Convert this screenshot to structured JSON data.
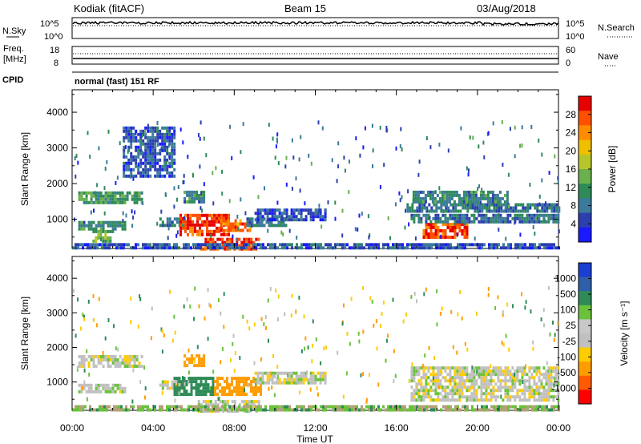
{
  "header": {
    "station": "Kodiak (fitACF)",
    "beam": "Beam 15",
    "date": "03/Aug/2018"
  },
  "top_panels": {
    "nsky_label": "N.Sky",
    "nsky_ticks": [
      "10^5",
      "10^0"
    ],
    "nsearch_label": "N.Search",
    "nsearch_ticks": [
      "10^5",
      "10^0"
    ],
    "freq_label_1": "Freq.",
    "freq_label_2": "[MHz]",
    "freq_ticks": [
      "18",
      "8"
    ],
    "nave_label": "Nave",
    "nave_ticks": [
      "60",
      "0"
    ],
    "cpid_label": "CPID",
    "cpid_value": "normal (fast) 151 RF"
  },
  "colors": {
    "power": [
      "#1a1aff",
      "#2b3fae",
      "#3b7a9a",
      "#2e8b57",
      "#6ab04c",
      "#b6c62a",
      "#f0c000",
      "#ff8c00",
      "#ff5000",
      "#e60000"
    ],
    "velocity": [
      "#ff0000",
      "#ff5a00",
      "#ff9d00",
      "#ffcc00",
      "#c0c0c0",
      "#c8c8c8",
      "#6ac23a",
      "#2e8b57",
      "#2f5fa8",
      "#1a3fd0"
    ],
    "ground_scatter": "#b4a07a"
  },
  "chart_data": [
    {
      "type": "heatmap",
      "name": "power-panel",
      "xlabel": "",
      "ylabel": "Slant Range [km]",
      "x_ticks": [
        "00:00",
        "04:00",
        "08:00",
        "12:00",
        "16:00",
        "20:00",
        "00:00"
      ],
      "x_range_hours": [
        0,
        24
      ],
      "y_ticks": [
        1000,
        2000,
        3000,
        4000
      ],
      "ylim": [
        180,
        4630
      ],
      "colorbar_label": "Power [dB]",
      "colorbar_ticks": [
        "4",
        "8",
        "12",
        "16",
        "20",
        "24",
        "28"
      ],
      "colorbar_range": [
        0,
        32
      ],
      "regions": [
        {
          "t0": 0.3,
          "t1": 3.5,
          "r0": 1450,
          "r1": 1780,
          "value": 12
        },
        {
          "t0": 0.3,
          "t1": 2.6,
          "r0": 700,
          "r1": 950,
          "value": 10
        },
        {
          "t0": 1.0,
          "t1": 2.0,
          "r0": 420,
          "r1": 700,
          "value": 14
        },
        {
          "t0": 4.3,
          "t1": 5.6,
          "r0": 800,
          "r1": 1050,
          "value": 9
        },
        {
          "t0": 5.3,
          "t1": 7.7,
          "r0": 570,
          "r1": 1150,
          "value": 28
        },
        {
          "t0": 7.3,
          "t1": 8.8,
          "r0": 650,
          "r1": 1000,
          "value": 26
        },
        {
          "t0": 6.3,
          "t1": 9.2,
          "r0": 200,
          "r1": 480,
          "value": 28
        },
        {
          "t0": 8.6,
          "t1": 10.5,
          "r0": 800,
          "r1": 1050,
          "value": 8
        },
        {
          "t0": 5.5,
          "t1": 6.5,
          "r0": 1500,
          "r1": 1800,
          "value": 10
        },
        {
          "t0": 2.5,
          "t1": 5.0,
          "r0": 2200,
          "r1": 3600,
          "value": 6
        },
        {
          "t0": 9.0,
          "t1": 12.5,
          "r0": 1000,
          "r1": 1300,
          "value": 5
        },
        {
          "t0": 17.3,
          "t1": 19.5,
          "r0": 470,
          "r1": 900,
          "value": 28
        },
        {
          "t0": 16.7,
          "t1": 24.0,
          "r0": 950,
          "r1": 1150,
          "value": 8
        },
        {
          "t0": 16.5,
          "t1": 24.0,
          "r0": 1200,
          "r1": 1450,
          "value": 8
        },
        {
          "t0": 16.8,
          "t1": 21.5,
          "r0": 1500,
          "r1": 1800,
          "value": 10
        },
        {
          "t0": 0.0,
          "t1": 24.0,
          "r0": 180,
          "r1": 330,
          "value": 6
        }
      ]
    },
    {
      "type": "heatmap",
      "name": "velocity-panel",
      "xlabel": "Time UT",
      "ylabel": "Slant Range [km]",
      "x_ticks": [
        "00:00",
        "04:00",
        "08:00",
        "12:00",
        "16:00",
        "20:00",
        "00:00"
      ],
      "x_range_hours": [
        0,
        24
      ],
      "y_ticks": [
        1000,
        2000,
        3000,
        4000
      ],
      "ylim": [
        180,
        4630
      ],
      "colorbar_label": "Velocity [m s⁻¹]",
      "colorbar_ticks": [
        "1000",
        "500",
        "100",
        "25",
        "-25",
        "-100",
        "-500",
        "-1000"
      ],
      "regions": [
        {
          "t0": 0.3,
          "t1": 3.5,
          "r0": 1450,
          "r1": 1780,
          "value": 0
        },
        {
          "t0": 0.3,
          "t1": 2.6,
          "r0": 700,
          "r1": 950,
          "value": 10
        },
        {
          "t0": 4.3,
          "t1": 5.6,
          "r0": 800,
          "r1": 1050,
          "value": 0
        },
        {
          "t0": 5.0,
          "t1": 7.0,
          "r0": 650,
          "r1": 1150,
          "value": 150
        },
        {
          "t0": 7.0,
          "t1": 9.3,
          "r0": 650,
          "r1": 1150,
          "value": -300
        },
        {
          "t0": 6.2,
          "t1": 9.2,
          "r0": 200,
          "r1": 480,
          "value": 0
        },
        {
          "t0": 5.5,
          "t1": 6.5,
          "r0": 1500,
          "r1": 1800,
          "value": -150
        },
        {
          "t0": 9.0,
          "t1": 12.5,
          "r0": 1000,
          "r1": 1300,
          "value": 0
        },
        {
          "t0": 16.7,
          "t1": 24.0,
          "r0": 470,
          "r1": 1450,
          "value": 0
        },
        {
          "t0": 0.0,
          "t1": 24.0,
          "r0": 180,
          "r1": 330,
          "value": 80
        }
      ]
    }
  ]
}
